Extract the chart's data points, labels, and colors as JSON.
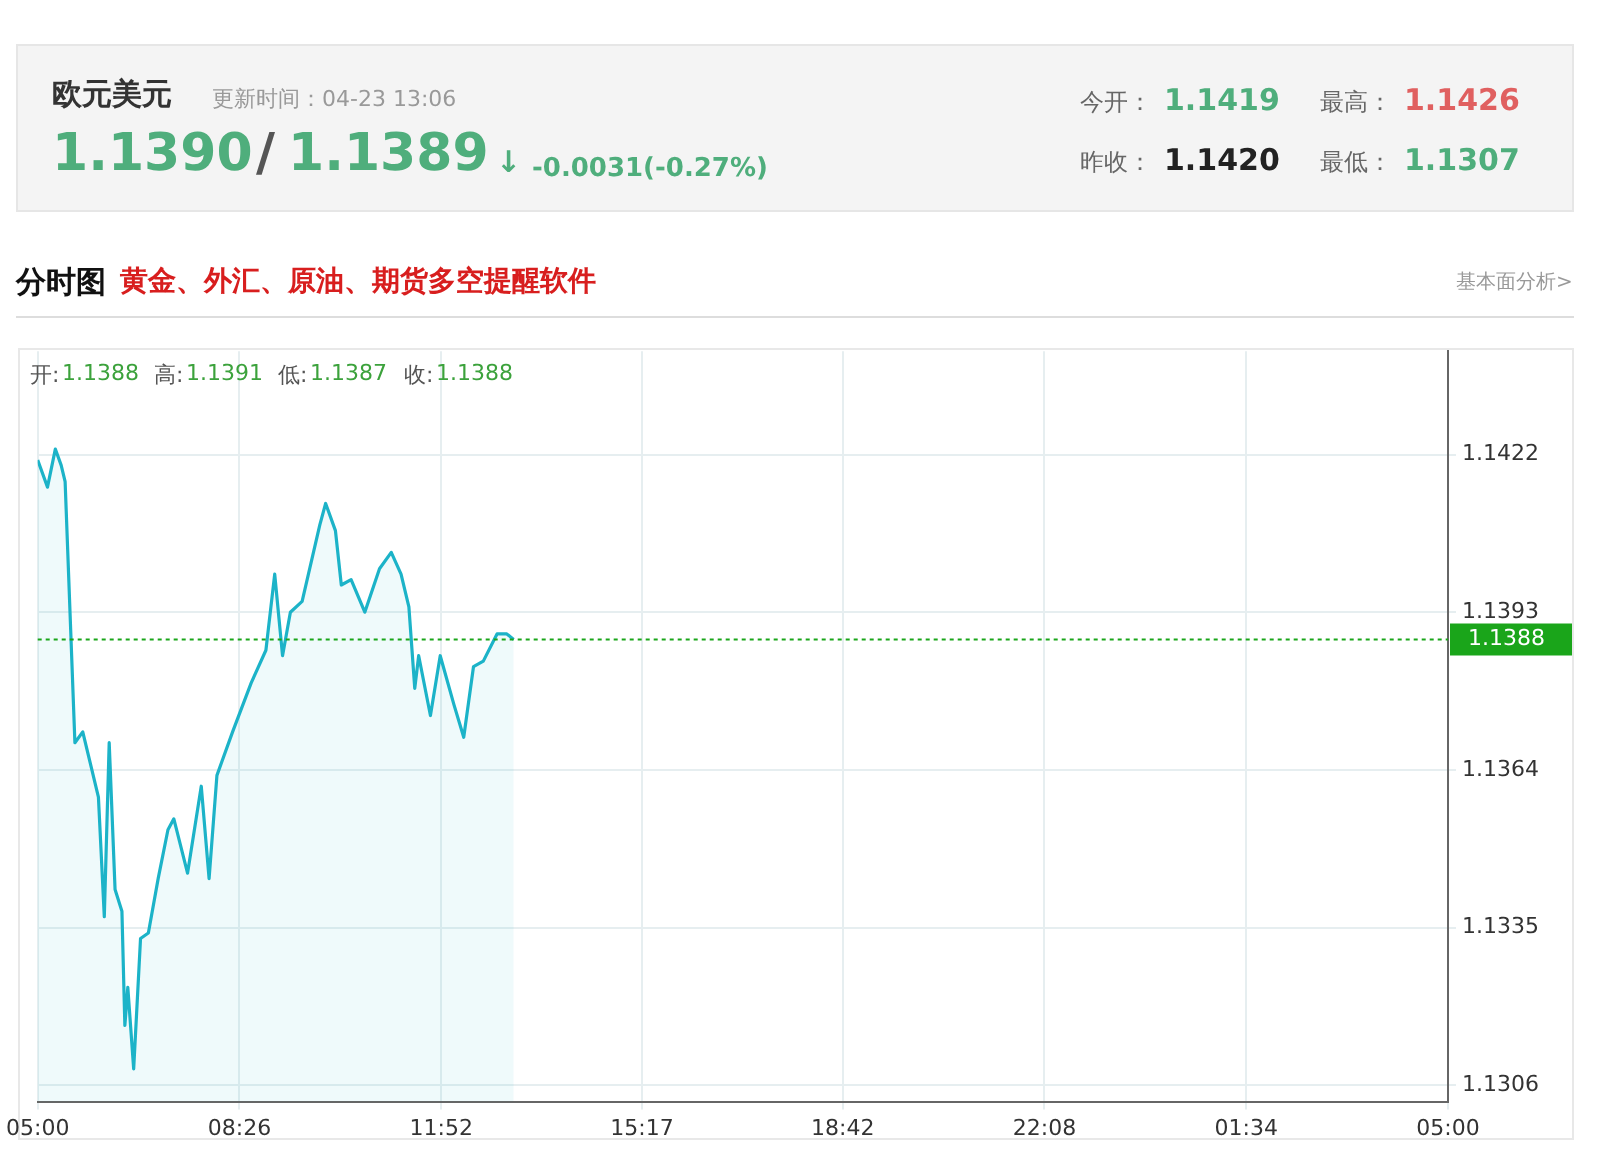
{
  "chart_data": {
    "type": "area",
    "title": "欧元美元",
    "subtitle": "更新时间：04-23 13:06",
    "annotations": [
      "1.1390",
      "/",
      "1.1389",
      "↓",
      "-0.0031(-0.27%)",
      "今开：",
      "1.1419",
      "最高：",
      "1.1426",
      "昨收：",
      "1.1420",
      "最低：",
      "1.1307",
      "分时图",
      "黄金、外汇、原油、期货多空提醒软件",
      "基本面分析>",
      "开:",
      "1.1388",
      "高:",
      "1.1391",
      "低:",
      "1.1387",
      "收:",
      "1.1388"
    ],
    "x": [
      "--04-23T05:00",
      "--04-23T05:10",
      "--04-23T05:18",
      "--04-23T05:24",
      "--04-23T05:28",
      "--04-23T05:38",
      "--04-23T05:46",
      "--04-23T06:02",
      "--04-23T06:08",
      "--04-23T06:13",
      "--04-23T06:19",
      "--04-23T06:26",
      "--04-23T06:29",
      "--04-23T06:32",
      "--04-23T06:38",
      "--04-23T06:45",
      "--04-23T06:53",
      "--04-23T07:03",
      "--04-23T07:13",
      "--04-23T07:19",
      "--04-23T07:33",
      "--04-23T07:47",
      "--04-23T07:55",
      "--04-23T08:03",
      "--04-23T08:19",
      "--04-23T08:38",
      "--04-23T08:53",
      "--04-23T09:02",
      "--04-23T09:10",
      "--04-23T09:18",
      "--04-23T09:30",
      "--04-23T09:48",
      "--04-23T09:54",
      "--04-23T10:04",
      "--04-23T10:10",
      "--04-23T10:20",
      "--04-23T10:34",
      "--04-23T10:49",
      "--04-23T11:01",
      "--04-23T11:11",
      "--04-23T11:19",
      "--04-23T11:25",
      "--04-23T11:29",
      "--04-23T11:41",
      "--04-23T11:51",
      "--04-23T12:05",
      "--04-23T12:15",
      "--04-23T12:25",
      "--04-23T12:35",
      "--04-23T12:49",
      "--04-23T12:59",
      "--04-23T13:06"
    ],
    "series": [
      {
        "color": "#1cb3c8",
        "values": [
          1.1421,
          1.1416,
          1.1423,
          1.142,
          1.1417,
          1.1369,
          1.1371,
          1.1359,
          1.1337,
          1.1369,
          1.1342,
          1.1338,
          1.1317,
          1.1324,
          1.1309,
          1.1333,
          1.1334,
          1.1344,
          1.1353,
          1.1355,
          1.1345,
          1.1361,
          1.1344,
          1.1363,
          1.1371,
          1.138,
          1.1386,
          1.14,
          1.1385,
          1.1393,
          1.1395,
          1.1409,
          1.1413,
          1.1408,
          1.1398,
          1.1399,
          1.1393,
          1.1401,
          1.1404,
          1.14,
          1.1394,
          1.1379,
          1.1385,
          1.1374,
          1.1385,
          1.1376,
          1.137,
          1.1383,
          1.1384,
          1.1389,
          1.1389,
          1.1388
        ]
      }
    ],
    "xlim": [
      "--04-23T05:00",
      "--04-24T05:00"
    ],
    "xticks": [
      {
        "value": "--04-23T05:00",
        "label": "05:00"
      },
      {
        "value": "--04-23T08:26",
        "label": "08:26"
      },
      {
        "value": "--04-23T11:52",
        "label": "11:52"
      },
      {
        "value": "--04-23T15:17",
        "label": "15:17"
      },
      {
        "value": "--04-23T18:42",
        "label": "18:42"
      },
      {
        "value": "--04-23T22:08",
        "label": "22:08"
      },
      {
        "value": "--04-24T01:34",
        "label": "01:34"
      },
      {
        "value": "--04-24T05:00",
        "label": "05:00"
      }
    ],
    "ylim": [
      1.1303,
      1.1441
    ],
    "yticks": [
      1.1306,
      1.1335,
      1.1364,
      1.1393,
      1.1422
    ],
    "ref_lines": [
      {
        "axis": "y",
        "value": 1.1388,
        "label": "1.1388",
        "color": "#1aa51a",
        "line_style": "dotted"
      }
    ],
    "grid": true,
    "legend": false,
    "marker": "none",
    "line_style": "solid"
  }
}
